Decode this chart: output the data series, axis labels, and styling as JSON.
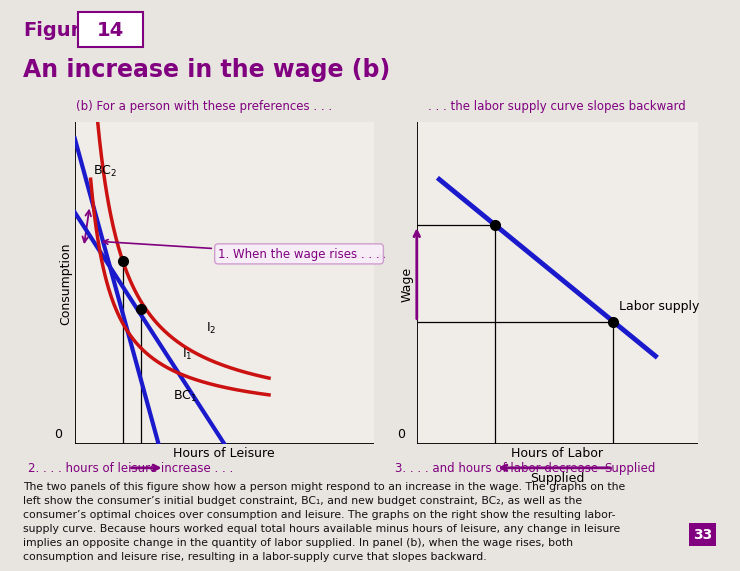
{
  "title_figure": "Figure",
  "title_number": "14",
  "title_main": "An increase in the wage (b)",
  "subtitle_left": "(b) For a person with these preferences . . .",
  "subtitle_right": ". . . the labor supply curve slopes backward",
  "bg_light": "#e8e4e0",
  "bg_header": "#dedad6",
  "panel_bg": "#f0ece8",
  "left_xlabel": "Hours of Leisure",
  "left_ylabel": "Consumption",
  "right_xlabel": "Hours of Labor",
  "right_xlabel2": "Supplied",
  "right_ylabel": "Wage",
  "annotation1": "1. When the wage rises . . .",
  "annotation2": "2. . . . hours of leisure increase . . .",
  "annotation3": "3. . . . and hours of labor decrease",
  "purple": "#800080",
  "blue": "#1a1acc",
  "red": "#cc1111",
  "body_text": "The two panels of this figure show how a person might respond to an increase in the wage. The graphs on the\nleft show the consumer’s initial budget constraint, BC₁, and new budget constraint, BC₂, as well as the\nconsumer’s optimal choices over consumption and leisure. The graphs on the right show the resulting labor-\nsupply curve. Because hours worked equal total hours available minus hours of leisure, any change in leisure\nimplies an opposite change in the quantity of labor supplied. In panel (b), when the wage rises, both\nconsumption and leisure rise, resulting in a labor-supply curve that slopes backward."
}
